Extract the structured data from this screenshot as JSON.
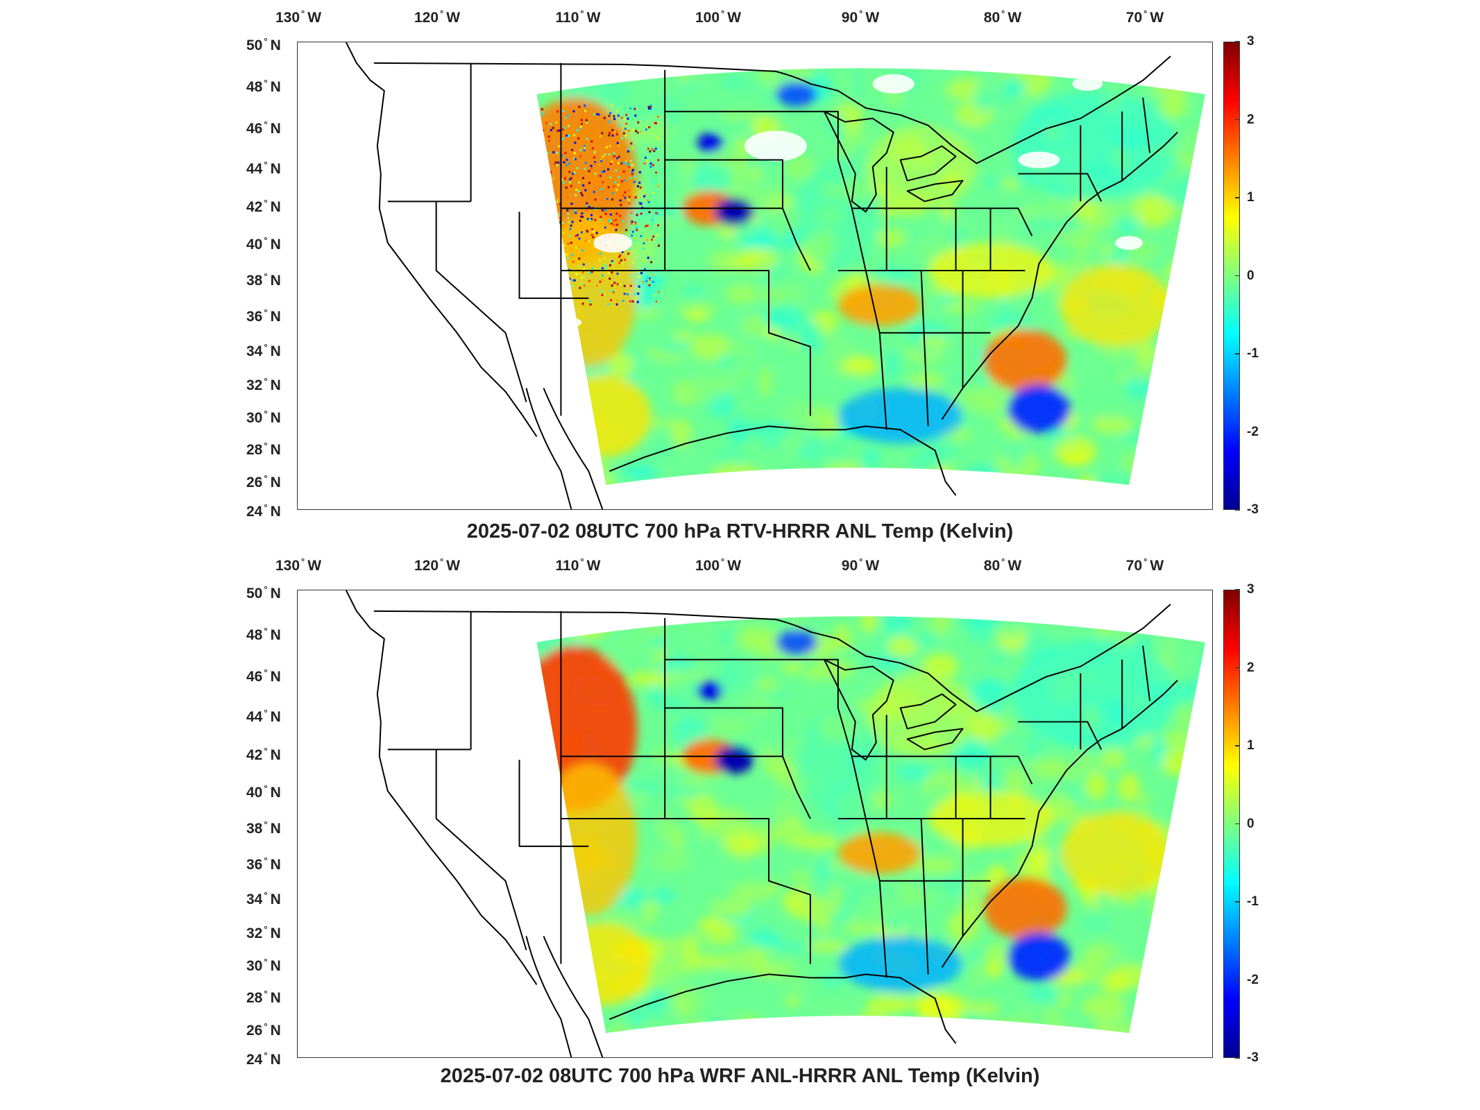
{
  "panels": [
    {
      "title": "2025-07-02 08UTC 700 hPa RTV-HRRR ANL Temp (Kelvin)",
      "variant": "rtv"
    },
    {
      "title": "2025-07-02 08UTC 700 hPa WRF ANL-HRRR ANL Temp (Kelvin)",
      "variant": "wrf"
    }
  ],
  "axes": {
    "lon_labels": [
      {
        "value": "130",
        "hemi": "W"
      },
      {
        "value": "120",
        "hemi": "W"
      },
      {
        "value": "110",
        "hemi": "W"
      },
      {
        "value": "100",
        "hemi": "W"
      },
      {
        "value": "90",
        "hemi": "W"
      },
      {
        "value": "80",
        "hemi": "W"
      },
      {
        "value": "70",
        "hemi": "W"
      }
    ],
    "lat_labels": [
      {
        "value": "50",
        "hemi": "N"
      },
      {
        "value": "48",
        "hemi": "N"
      },
      {
        "value": "46",
        "hemi": "N"
      },
      {
        "value": "44",
        "hemi": "N"
      },
      {
        "value": "42",
        "hemi": "N"
      },
      {
        "value": "40",
        "hemi": "N"
      },
      {
        "value": "38",
        "hemi": "N"
      },
      {
        "value": "36",
        "hemi": "N"
      },
      {
        "value": "34",
        "hemi": "N"
      },
      {
        "value": "32",
        "hemi": "N"
      },
      {
        "value": "30",
        "hemi": "N"
      },
      {
        "value": "28",
        "hemi": "N"
      },
      {
        "value": "26",
        "hemi": "N"
      },
      {
        "value": "24",
        "hemi": "N"
      }
    ]
  },
  "colorbar": {
    "ticks": [
      "3",
      "2",
      "1",
      "0",
      "-1",
      "-2",
      "-3"
    ],
    "range": [
      -3,
      3
    ],
    "colormap": "jet",
    "colors": [
      "#00008f",
      "#0000ff",
      "#0080ff",
      "#00ffff",
      "#80ff80",
      "#ffff00",
      "#ff8000",
      "#ff0000",
      "#800000"
    ]
  }
}
